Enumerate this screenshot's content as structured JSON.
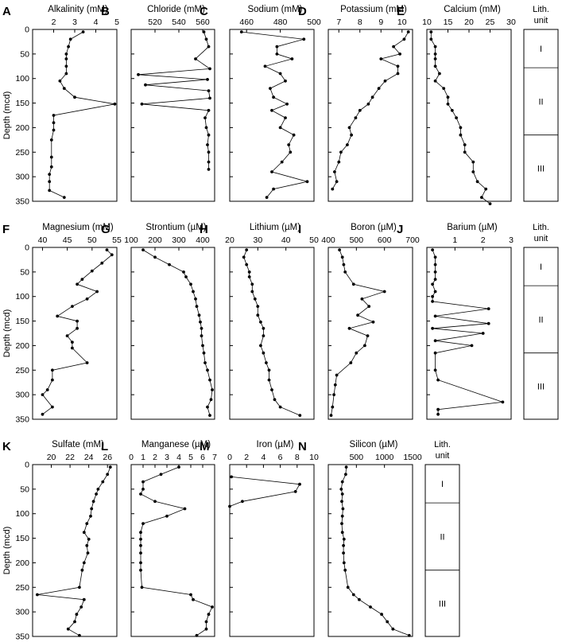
{
  "figure": {
    "y_label": "Depth (mcd)",
    "lith_header": [
      "Lith.",
      "unit"
    ],
    "lith_units": [
      {
        "name": "I",
        "top": 0,
        "bottom": 78
      },
      {
        "name": "II",
        "top": 78,
        "bottom": 215
      },
      {
        "name": "III",
        "top": 215,
        "bottom": 350
      }
    ]
  },
  "chart_data": [
    {
      "type": "line",
      "letter": "A",
      "title": "Alkalinity (mM)",
      "xlim": [
        1,
        5
      ],
      "xticks": [
        2,
        3,
        4,
        5
      ],
      "ylim": [
        0,
        350
      ],
      "yticks": [
        0,
        50,
        100,
        150,
        200,
        250,
        300,
        350
      ],
      "x": [
        3.4,
        2.8,
        2.7,
        2.6,
        2.6,
        2.6,
        2.6,
        2.3,
        2.5,
        3.0,
        4.9,
        2.0,
        2.0,
        2.0,
        1.9,
        1.9,
        1.9,
        1.8,
        1.8,
        1.8,
        2.5
      ],
      "y": [
        5,
        20,
        35,
        50,
        60,
        75,
        90,
        105,
        120,
        138,
        152,
        175,
        190,
        205,
        225,
        260,
        280,
        295,
        310,
        328,
        342
      ]
    },
    {
      "type": "line",
      "letter": "B",
      "title": "Chloride (mM)",
      "xlim": [
        500,
        570
      ],
      "xticks": [
        520,
        540,
        560
      ],
      "ylim": [
        0,
        350
      ],
      "yticks": [
        0,
        50,
        100,
        150,
        200,
        250,
        300,
        350
      ],
      "x": [
        561,
        563,
        565,
        554,
        566,
        506,
        564,
        512,
        565,
        566,
        509,
        565,
        562,
        563,
        565,
        564,
        565,
        565,
        565
      ],
      "y": [
        5,
        20,
        35,
        60,
        80,
        92,
        102,
        113,
        125,
        140,
        152,
        165,
        180,
        200,
        215,
        235,
        250,
        270,
        285
      ]
    },
    {
      "type": "line",
      "letter": "C",
      "title": "Sodium (mM)",
      "xlim": [
        450,
        500
      ],
      "xticks": [
        460,
        480,
        500
      ],
      "ylim": [
        0,
        350
      ],
      "yticks": [
        0,
        50,
        100,
        150,
        200,
        250,
        300,
        350
      ],
      "x": [
        457,
        494,
        478,
        478,
        487,
        471,
        480,
        483,
        474,
        476,
        484,
        475,
        483,
        480,
        488,
        485,
        486,
        481,
        475,
        496,
        476,
        472
      ],
      "y": [
        5,
        20,
        35,
        50,
        60,
        75,
        90,
        105,
        120,
        138,
        152,
        165,
        180,
        200,
        215,
        235,
        250,
        270,
        290,
        310,
        325,
        342
      ]
    },
    {
      "type": "line",
      "letter": "D",
      "title": "Potassium (mM)",
      "xlim": [
        6.5,
        10.5
      ],
      "xticks": [
        7,
        8,
        9,
        10
      ],
      "ylim": [
        0,
        350
      ],
      "yticks": [
        0,
        50,
        100,
        150,
        200,
        250,
        300,
        350
      ],
      "x": [
        10.3,
        10.1,
        9.6,
        9.9,
        9.0,
        9.8,
        9.8,
        9.2,
        8.9,
        8.6,
        8.4,
        8.0,
        7.8,
        7.5,
        7.6,
        7.4,
        7.1,
        7.0,
        6.8,
        6.9,
        6.7
      ],
      "y": [
        5,
        20,
        35,
        50,
        60,
        75,
        90,
        105,
        120,
        138,
        152,
        165,
        180,
        200,
        215,
        235,
        250,
        270,
        290,
        310,
        325
      ]
    },
    {
      "type": "line",
      "letter": "E",
      "title": "Calcium (mM)",
      "xlim": [
        10,
        30
      ],
      "xticks": [
        10,
        15,
        20,
        25,
        30
      ],
      "ylim": [
        0,
        350
      ],
      "yticks": [
        0,
        50,
        100,
        150,
        200,
        250,
        300,
        350
      ],
      "x": [
        11,
        11,
        12,
        12,
        12,
        12,
        13,
        12,
        14,
        15,
        15,
        16,
        17,
        18,
        18,
        19,
        19,
        21,
        21,
        22,
        24,
        23,
        25
      ],
      "y": [
        5,
        20,
        35,
        50,
        60,
        75,
        90,
        105,
        120,
        138,
        152,
        165,
        180,
        200,
        215,
        235,
        250,
        270,
        290,
        310,
        325,
        342,
        355
      ]
    },
    {
      "type": "line",
      "letter": "F",
      "title": "Magnesium (mM)",
      "xlim": [
        38,
        55
      ],
      "xticks": [
        40,
        45,
        50,
        55
      ],
      "ylim": [
        0,
        350
      ],
      "yticks": [
        0,
        50,
        100,
        150,
        200,
        250,
        300,
        350
      ],
      "x": [
        53,
        54,
        52,
        50,
        48,
        47,
        51,
        49,
        46,
        43,
        47,
        47,
        45,
        46,
        46,
        49,
        42,
        42,
        41,
        40,
        42,
        40
      ],
      "y": [
        5,
        15,
        32,
        48,
        65,
        75,
        90,
        105,
        120,
        140,
        150,
        165,
        180,
        193,
        205,
        235,
        250,
        270,
        290,
        300,
        325,
        340
      ]
    },
    {
      "type": "line",
      "letter": "G",
      "title": "Strontium (µM)",
      "xlim": [
        100,
        450
      ],
      "xticks": [
        100,
        200,
        300,
        400
      ],
      "ylim": [
        0,
        350
      ],
      "yticks": [
        0,
        50,
        100,
        150,
        200,
        250,
        300,
        350
      ],
      "x": [
        150,
        200,
        260,
        320,
        330,
        350,
        360,
        370,
        375,
        385,
        390,
        395,
        395,
        400,
        405,
        410,
        420,
        430,
        440,
        435,
        420,
        430
      ],
      "y": [
        5,
        20,
        35,
        50,
        60,
        75,
        90,
        105,
        120,
        138,
        152,
        165,
        180,
        200,
        215,
        235,
        250,
        270,
        290,
        310,
        325,
        342
      ]
    },
    {
      "type": "line",
      "letter": "H",
      "title": "Lithium (µM)",
      "xlim": [
        20,
        50
      ],
      "xticks": [
        20,
        30,
        40,
        50
      ],
      "ylim": [
        0,
        350
      ],
      "yticks": [
        0,
        50,
        100,
        150,
        200,
        250,
        300,
        350
      ],
      "x": [
        26,
        25,
        26,
        27,
        27,
        28,
        28,
        29,
        30,
        30,
        31,
        32,
        32,
        31,
        32,
        33,
        34,
        34,
        35,
        36,
        38,
        45
      ],
      "y": [
        5,
        20,
        35,
        50,
        60,
        75,
        90,
        105,
        120,
        138,
        152,
        165,
        180,
        200,
        215,
        235,
        250,
        270,
        290,
        310,
        325,
        342
      ]
    },
    {
      "type": "line",
      "letter": "I",
      "title": "Boron (µM)",
      "xlim": [
        400,
        700
      ],
      "xticks": [
        400,
        500,
        600,
        700
      ],
      "ylim": [
        0,
        350
      ],
      "yticks": [
        0,
        50,
        100,
        150,
        200,
        250,
        300,
        350
      ],
      "x": [
        440,
        450,
        455,
        460,
        490,
        600,
        520,
        545,
        505,
        560,
        475,
        540,
        530,
        500,
        480,
        430,
        425,
        420,
        415,
        410
      ],
      "y": [
        5,
        20,
        35,
        50,
        75,
        90,
        105,
        120,
        138,
        152,
        165,
        180,
        200,
        215,
        235,
        260,
        280,
        300,
        325,
        342
      ]
    },
    {
      "type": "line",
      "letter": "J",
      "title": "Barium (µM)",
      "xlim": [
        0,
        3
      ],
      "xticks": [
        1,
        2,
        3
      ],
      "ylim": [
        0,
        350
      ],
      "yticks": [
        0,
        50,
        100,
        150,
        200,
        250,
        300,
        350
      ],
      "x": [
        0.2,
        0.3,
        0.3,
        0.3,
        0.3,
        0.2,
        0.3,
        0.2,
        0.2,
        2.2,
        0.3,
        2.2,
        0.2,
        2.0,
        0.3,
        1.6,
        0.3,
        0.3,
        0.4,
        2.7,
        0.4,
        0.4
      ],
      "y": [
        5,
        20,
        35,
        50,
        65,
        75,
        90,
        100,
        110,
        125,
        140,
        155,
        165,
        175,
        190,
        200,
        215,
        250,
        270,
        315,
        330,
        340
      ]
    },
    {
      "type": "line",
      "letter": "K",
      "title": "Sulfate (mM)",
      "xlim": [
        18,
        27
      ],
      "xticks": [
        20,
        22,
        24,
        26
      ],
      "ylim": [
        0,
        350
      ],
      "yticks": [
        0,
        50,
        100,
        150,
        200,
        250,
        300,
        350
      ],
      "x": [
        26.3,
        26.0,
        25.5,
        25.0,
        24.8,
        24.5,
        24.3,
        24.2,
        23.8,
        23.5,
        24.0,
        23.8,
        23.9,
        23.5,
        23.3,
        23.0,
        18.5,
        23.5,
        23.2,
        22.7,
        22.5,
        21.8,
        23.0
      ],
      "y": [
        5,
        20,
        35,
        50,
        60,
        75,
        90,
        105,
        120,
        138,
        152,
        165,
        180,
        200,
        215,
        250,
        265,
        275,
        290,
        305,
        320,
        335,
        348
      ]
    },
    {
      "type": "line",
      "letter": "L",
      "title": "Manganese (µM)",
      "xlim": [
        0,
        7
      ],
      "xticks": [
        0,
        1,
        2,
        3,
        4,
        5,
        6,
        7
      ],
      "ylim": [
        0,
        350
      ],
      "yticks": [
        0,
        50,
        100,
        150,
        200,
        250,
        300,
        350
      ],
      "x": [
        4.0,
        2.5,
        1.0,
        1.0,
        0.8,
        2.0,
        4.5,
        3.0,
        1.0,
        0.8,
        0.8,
        0.8,
        0.8,
        0.8,
        0.8,
        0.9,
        5.0,
        5.2,
        6.8,
        6.5,
        6.3,
        6.3,
        5.5
      ],
      "y": [
        5,
        20,
        35,
        50,
        60,
        75,
        90,
        105,
        120,
        138,
        152,
        165,
        180,
        200,
        215,
        250,
        265,
        275,
        290,
        305,
        320,
        335,
        348
      ]
    },
    {
      "type": "line",
      "letter": "M",
      "title": "Iron (µM)",
      "xlim": [
        0,
        10
      ],
      "xticks": [
        0,
        2,
        4,
        6,
        8,
        10
      ],
      "ylim": [
        0,
        350
      ],
      "yticks": [
        0,
        50,
        100,
        150,
        200,
        250,
        300,
        350
      ],
      "x": [
        0.2,
        8.3,
        7.8,
        1.5,
        0.0
      ],
      "y": [
        25,
        40,
        55,
        75,
        85
      ]
    },
    {
      "type": "line",
      "letter": "N",
      "title": "Silicon (µM)",
      "xlim": [
        0,
        1500
      ],
      "xticks": [
        500,
        1000,
        1500
      ],
      "ylim": [
        0,
        350
      ],
      "yticks": [
        0,
        50,
        100,
        150,
        200,
        250,
        300,
        350
      ],
      "x": [
        320,
        310,
        250,
        230,
        250,
        240,
        260,
        250,
        240,
        250,
        280,
        270,
        270,
        280,
        300,
        350,
        450,
        550,
        750,
        950,
        1050,
        1150,
        1440
      ],
      "y": [
        5,
        20,
        35,
        50,
        60,
        75,
        90,
        105,
        120,
        138,
        152,
        165,
        180,
        200,
        215,
        250,
        265,
        275,
        290,
        305,
        320,
        335,
        348
      ]
    }
  ]
}
